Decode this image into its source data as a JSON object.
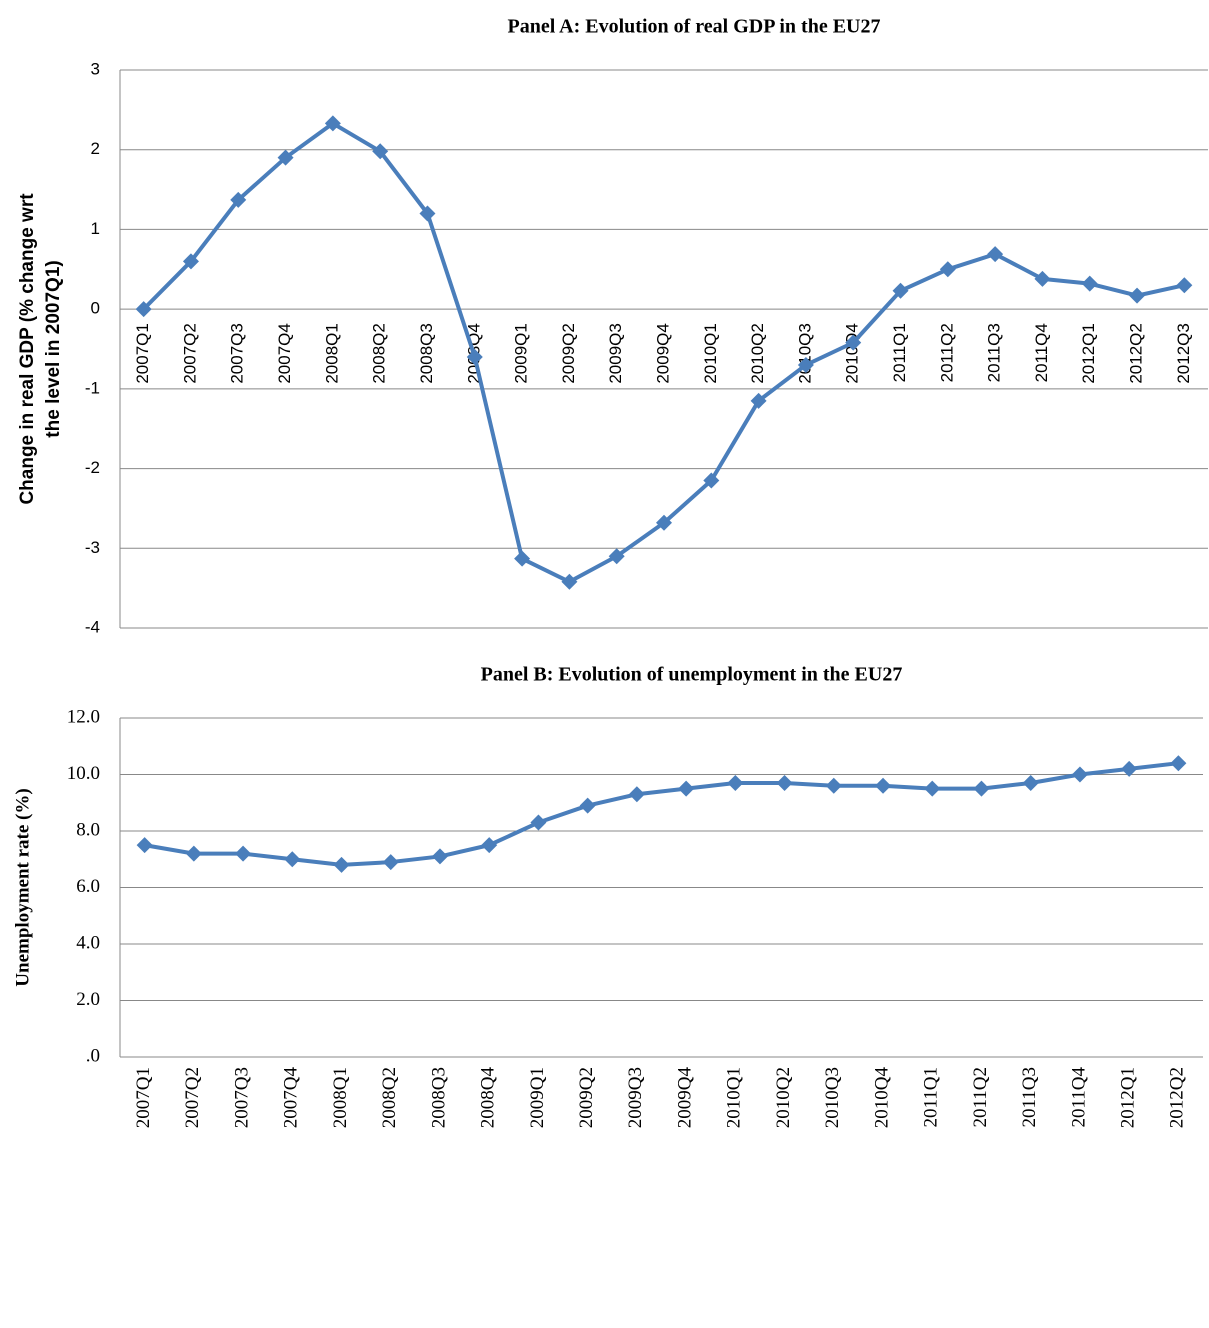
{
  "chart_data": [
    {
      "type": "line",
      "title": "Panel A: Evolution of real GDP in the EU27",
      "y_label": [
        "Change in real GDP (% change wrt",
        "the level in 2007Q1)"
      ],
      "categories": [
        "2007Q1",
        "2007Q2",
        "2007Q3",
        "2007Q4",
        "2008Q1",
        "2008Q2",
        "2008Q3",
        "2008Q4",
        "2009Q1",
        "2009Q2",
        "2009Q3",
        "2009Q4",
        "2010Q1",
        "2010Q2",
        "2010Q3",
        "2010Q4",
        "2011Q1",
        "2011Q2",
        "2011Q3",
        "2011Q4",
        "2012Q1",
        "2012Q2",
        "2012Q3"
      ],
      "series": [
        {
          "color": "#4a7ebb",
          "values": [
            0,
            0.6,
            1.37,
            1.9,
            2.33,
            1.98,
            1.2,
            -0.6,
            -3.13,
            -3.42,
            -3.1,
            -2.68,
            -2.15,
            -1.15,
            -0.7,
            -0.42,
            0.23,
            0.5,
            0.69,
            0.38,
            0.32,
            0.17,
            0.3
          ]
        }
      ],
      "ylim": [
        -4,
        3
      ],
      "yticks": [
        -4,
        -3,
        -2,
        -1,
        0,
        1,
        2,
        3
      ],
      "grid": true
    },
    {
      "type": "line",
      "title": "Panel B: Evolution of unemployment in the EU27",
      "y_label": [
        "Unemployment rate (%)"
      ],
      "categories": [
        "2007Q1",
        "2007Q2",
        "2007Q3",
        "2007Q4",
        "2008Q1",
        "2008Q2",
        "2008Q3",
        "2008Q4",
        "2009Q1",
        "2009Q2",
        "2009Q3",
        "2009Q4",
        "2010Q1",
        "2010Q2",
        "2010Q3",
        "2010Q4",
        "2011Q1",
        "2011Q2",
        "2011Q3",
        "2011Q4",
        "2012Q1",
        "2012Q2"
      ],
      "series": [
        {
          "color": "#4a7ebb",
          "values": [
            7.5,
            7.2,
            7.2,
            7.0,
            6.8,
            6.9,
            7.1,
            7.5,
            8.3,
            8.9,
            9.3,
            9.5,
            9.7,
            9.7,
            9.6,
            9.6,
            9.5,
            9.5,
            9.7,
            10.0,
            10.2,
            10.4
          ]
        }
      ],
      "ylim": [
        0,
        12
      ],
      "yticks": [
        {
          "value": 0,
          "label": ".0"
        },
        {
          "value": 2,
          "label": "2.0"
        },
        {
          "value": 4,
          "label": "4.0"
        },
        {
          "value": 6,
          "label": "6.0"
        },
        {
          "value": 8,
          "label": "8.0"
        },
        {
          "value": 10,
          "label": "10.0"
        },
        {
          "value": 12,
          "label": "12.0"
        }
      ],
      "grid": true
    }
  ]
}
